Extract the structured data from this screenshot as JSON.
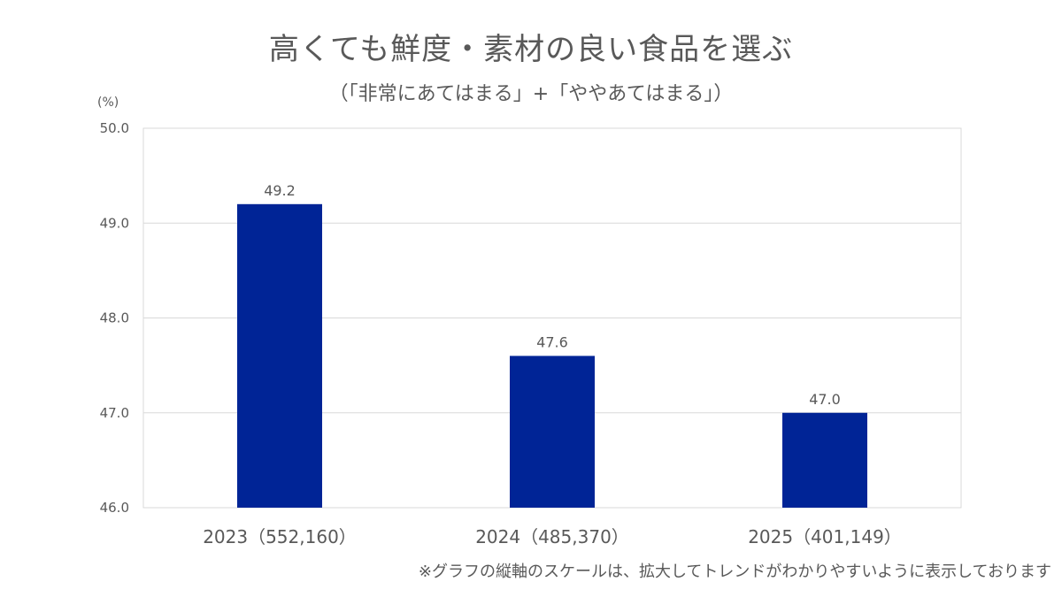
{
  "chart_data": {
    "type": "bar",
    "title": "高くても鮮度・素材の良い食品を選ぶ",
    "subtitle": "（「非常にあてはまる」+「ややあてはまる」）",
    "unit_label": "(%)",
    "categories": [
      "2023（552,160）",
      "2024（485,370）",
      "2025（401,149）"
    ],
    "values": [
      49.2,
      47.6,
      47.0
    ],
    "data_labels": [
      "49.2",
      "47.6",
      "47.0"
    ],
    "ylim": [
      46.0,
      50.0
    ],
    "yticks": [
      "46.0",
      "47.0",
      "48.0",
      "49.0",
      "50.0"
    ],
    "grid": true,
    "bar_color": "#002496",
    "note": "※グラフの縦軸のスケールは、拡大してトレンドがわかりやすいように表示しております"
  }
}
